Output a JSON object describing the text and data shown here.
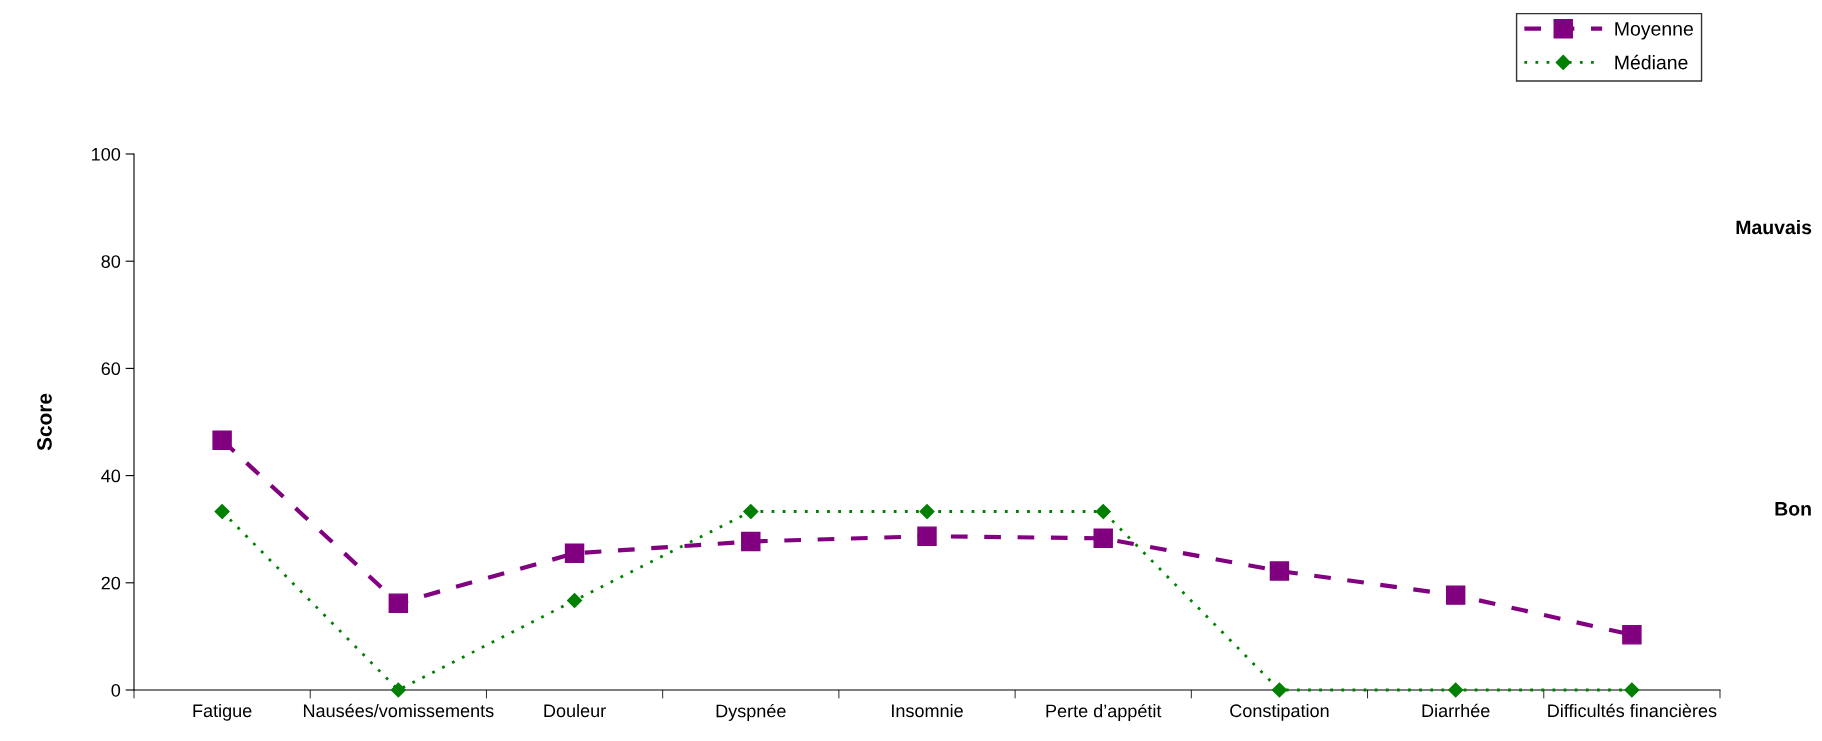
{
  "chart_data": {
    "type": "line",
    "ylabel": "Score",
    "categories": [
      "Fatigue",
      "Nausées/vomissements",
      "Douleur",
      "Dyspnée",
      "Insomnie",
      "Perte d’appétit",
      "Constipation",
      "Diarrhée",
      "Difficultés financières"
    ],
    "series": [
      {
        "name": "Moyenne",
        "color": "#800080",
        "marker": "square",
        "line_style": "dashed",
        "values": [
          46.6,
          16.2,
          25.5,
          27.7,
          28.7,
          28.3,
          22.2,
          17.7,
          10.3
        ]
      },
      {
        "name": "Médiane",
        "color": "#008000",
        "marker": "diamond",
        "line_style": "dotted",
        "values": [
          33.3,
          0,
          16.7,
          33.3,
          33.3,
          33.3,
          0,
          0,
          0
        ]
      }
    ],
    "ylim": [
      0,
      100
    ],
    "yticks": [
      0,
      20,
      40,
      60,
      80,
      100
    ],
    "annotations": [
      "Mauvais",
      "Bon"
    ],
    "legend": "top right",
    "grid": false
  }
}
